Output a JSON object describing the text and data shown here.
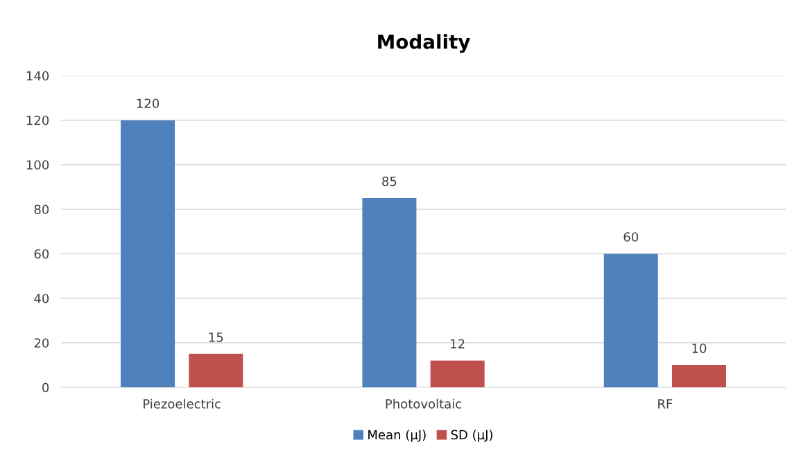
{
  "chart_data": {
    "type": "bar",
    "title": "Modality",
    "categories": [
      "Piezoelectric",
      "Photovoltaic",
      "RF"
    ],
    "series": [
      {
        "name": "Mean (µJ)",
        "color": "#4f81bd",
        "values": [
          120,
          85,
          60
        ]
      },
      {
        "name": "SD (µJ)",
        "color": "#c0504d",
        "values": [
          15,
          12,
          10
        ]
      }
    ],
    "ylim": [
      0,
      140
    ],
    "yticks": [
      0,
      20,
      40,
      60,
      80,
      100,
      120,
      140
    ],
    "grid": "y",
    "legend": "bottom",
    "data_labels": true
  }
}
